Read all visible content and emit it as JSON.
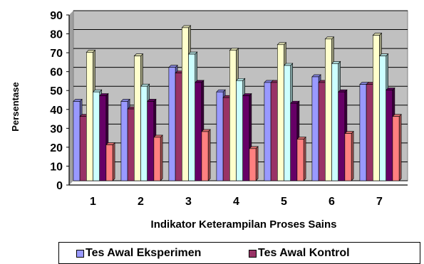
{
  "chart_data": {
    "type": "bar",
    "title": "",
    "xlabel": "Indikator Keterampilan Proses Sains",
    "ylabel": "Persentase",
    "ylim": [
      0,
      90
    ],
    "yticks": [
      0,
      10,
      20,
      30,
      40,
      50,
      60,
      70,
      80,
      90
    ],
    "grid": true,
    "legend_placement": "bottom",
    "categories": [
      "1",
      "2",
      "3",
      "4",
      "5",
      "6",
      "7"
    ],
    "series": [
      {
        "name": "Tes Awal Eksperimen",
        "color": "#9999ff",
        "values": [
          42,
          42,
          60,
          47,
          52,
          55,
          51
        ]
      },
      {
        "name": "Tes Awal Kontrol",
        "color": "#993366",
        "values": [
          34,
          38,
          57,
          44,
          52,
          52,
          51
        ]
      },
      {
        "color": "#ffffcc",
        "values": [
          68,
          66,
          81,
          69,
          72,
          75,
          77
        ]
      },
      {
        "color": "#ccffff",
        "values": [
          47,
          50,
          67,
          53,
          61,
          62,
          66
        ]
      },
      {
        "color": "#660066",
        "values": [
          45,
          42,
          52,
          45,
          41,
          47,
          48
        ]
      },
      {
        "color": "#ff8080",
        "values": [
          19,
          23,
          26,
          17,
          22,
          25,
          34
        ]
      }
    ]
  },
  "colors": {
    "plot_background": "#c0c0c0",
    "gridline": "#000000"
  }
}
